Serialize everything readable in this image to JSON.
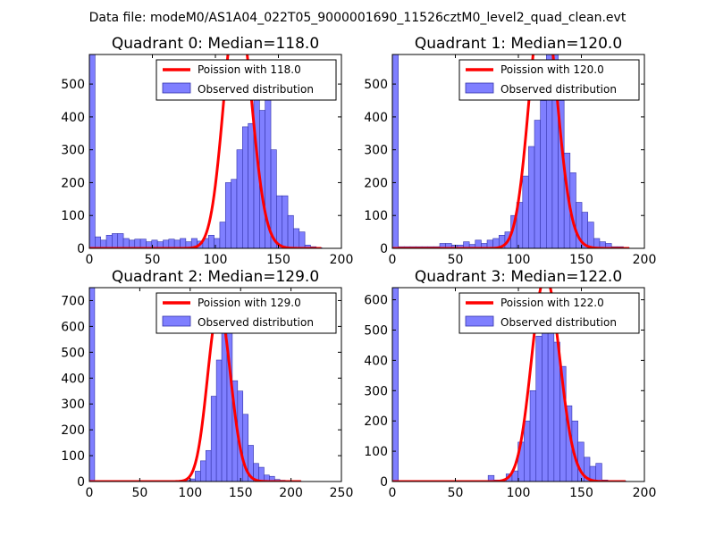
{
  "suptitle": "Data file: modeM0/AS1A04_022T05_9000001690_11526cztM0_level2_quad_clean.evt",
  "colors": {
    "hist_fill": "#7f7fff",
    "hist_edge": "#3333aa",
    "poisson": "#ff0000",
    "frame": "#000000"
  },
  "chart_data": [
    {
      "type": "bar",
      "title": "Quadrant 0: Median=118.0",
      "median": 118.0,
      "xlim": [
        0,
        200
      ],
      "ylim": [
        0,
        590
      ],
      "xticks": [
        0,
        50,
        100,
        150,
        200
      ],
      "yticks": [
        0,
        100,
        200,
        300,
        400,
        500
      ],
      "bin_width": 4.5,
      "bin_start": 0,
      "counts": [
        590,
        35,
        25,
        40,
        45,
        45,
        30,
        25,
        28,
        28,
        20,
        25,
        20,
        25,
        28,
        25,
        30,
        20,
        30,
        22,
        30,
        40,
        30,
        80,
        200,
        210,
        300,
        370,
        380,
        560,
        420,
        560,
        300,
        160,
        160,
        100,
        60,
        50,
        10,
        5,
        2
      ],
      "legend": [
        "Poission with 118.0",
        "Observed distribution"
      ]
    },
    {
      "type": "bar",
      "title": "Quadrant 1: Median=120.0",
      "median": 120.0,
      "xlim": [
        0,
        200
      ],
      "ylim": [
        0,
        590
      ],
      "xticks": [
        0,
        50,
        100,
        150,
        200
      ],
      "yticks": [
        0,
        100,
        200,
        300,
        400,
        500
      ],
      "bin_width": 4.7,
      "bin_start": 0,
      "counts": [
        590,
        5,
        5,
        5,
        5,
        5,
        5,
        5,
        15,
        15,
        10,
        10,
        20,
        12,
        25,
        15,
        25,
        30,
        40,
        50,
        100,
        140,
        220,
        310,
        390,
        450,
        590,
        590,
        450,
        290,
        230,
        140,
        110,
        80,
        30,
        20,
        15,
        5,
        5,
        2
      ],
      "legend": [
        "Poission with 120.0",
        "Observed distribution"
      ]
    },
    {
      "type": "bar",
      "title": "Quadrant 2: Median=129.0",
      "median": 129.0,
      "xlim": [
        0,
        250
      ],
      "ylim": [
        0,
        750
      ],
      "xticks": [
        0,
        50,
        100,
        150,
        200,
        250
      ],
      "yticks": [
        0,
        100,
        200,
        300,
        400,
        500,
        600,
        700
      ],
      "bin_width": 5.25,
      "bin_start": 0,
      "counts": [
        750,
        2,
        2,
        2,
        2,
        2,
        2,
        2,
        2,
        2,
        2,
        2,
        2,
        2,
        2,
        2,
        2,
        2,
        5,
        10,
        40,
        80,
        120,
        330,
        470,
        590,
        650,
        390,
        350,
        260,
        140,
        70,
        55,
        25,
        20,
        8,
        5,
        2,
        2,
        2
      ],
      "legend": [
        "Poission with 129.0",
        "Observed distribution"
      ]
    },
    {
      "type": "bar",
      "title": "Quadrant 3: Median=122.0",
      "median": 122.0,
      "xlim": [
        0,
        200
      ],
      "ylim": [
        0,
        640
      ],
      "xticks": [
        0,
        50,
        100,
        150,
        200
      ],
      "yticks": [
        0,
        100,
        200,
        300,
        400,
        500,
        600
      ],
      "bin_width": 4.75,
      "bin_start": 0,
      "counts": [
        640,
        2,
        2,
        2,
        2,
        2,
        2,
        2,
        2,
        2,
        2,
        2,
        2,
        2,
        2,
        2,
        20,
        5,
        5,
        25,
        35,
        130,
        200,
        300,
        480,
        500,
        610,
        460,
        380,
        250,
        200,
        130,
        80,
        50,
        60,
        5,
        2,
        2,
        2
      ],
      "legend": [
        "Poission with 122.0",
        "Observed distribution"
      ]
    }
  ]
}
